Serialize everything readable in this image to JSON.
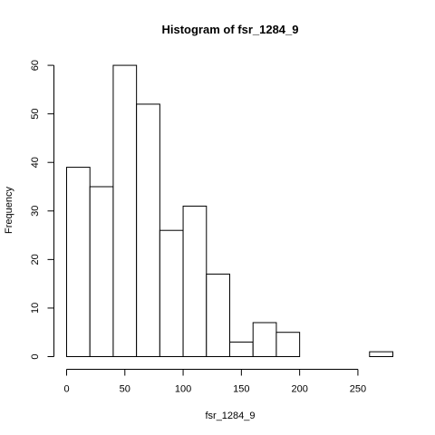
{
  "chart_data": {
    "type": "bar",
    "title": "Histogram of fsr_1284_9",
    "xlabel": "fsr_1284_9",
    "ylabel": "Frequency",
    "xlim": [
      0,
      280
    ],
    "ylim": [
      0,
      60
    ],
    "xticks": [
      0,
      50,
      100,
      150,
      200,
      250
    ],
    "yticks": [
      0,
      10,
      20,
      30,
      40,
      50,
      60
    ],
    "bin_edges": [
      0,
      20,
      40,
      60,
      80,
      100,
      120,
      140,
      160,
      180,
      200,
      220,
      240,
      260,
      280
    ],
    "values": [
      39,
      35,
      60,
      52,
      26,
      31,
      17,
      3,
      7,
      5,
      0,
      0,
      0,
      1
    ],
    "bar_fill": "#ffffff",
    "bar_stroke": "#000000",
    "grid": false
  }
}
